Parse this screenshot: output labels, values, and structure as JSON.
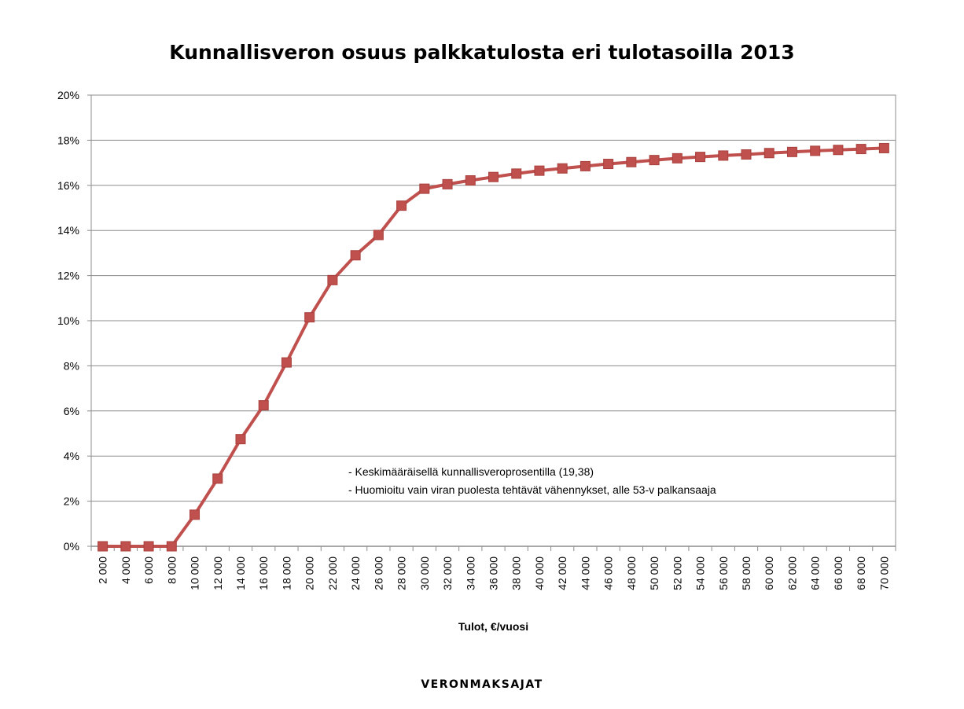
{
  "chart_data": {
    "type": "line",
    "title": "Kunnallisveron osuus palkkatulosta eri tulotasoilla 2013",
    "xlabel": "Tulot, €/vuosi",
    "ylabel": "",
    "categories": [
      "2 000",
      "4 000",
      "6 000",
      "8 000",
      "10 000",
      "12 000",
      "14 000",
      "16 000",
      "18 000",
      "20 000",
      "22 000",
      "24 000",
      "26 000",
      "28 000",
      "30 000",
      "32 000",
      "34 000",
      "36 000",
      "38 000",
      "40 000",
      "42 000",
      "44 000",
      "46 000",
      "48 000",
      "50 000",
      "52 000",
      "54 000",
      "56 000",
      "58 000",
      "60 000",
      "62 000",
      "64 000",
      "66 000",
      "68 000",
      "70 000"
    ],
    "series": [
      {
        "values": [
          0,
          0,
          0,
          0,
          1.4,
          3.0,
          4.75,
          6.25,
          8.15,
          10.15,
          11.8,
          12.9,
          13.8,
          15.1,
          15.85,
          16.05,
          16.22,
          16.37,
          16.52,
          16.65,
          16.75,
          16.85,
          16.95,
          17.03,
          17.12,
          17.2,
          17.26,
          17.32,
          17.37,
          17.43,
          17.48,
          17.53,
          17.57,
          17.61,
          17.65
        ],
        "color": "#c0504d"
      }
    ],
    "ylim": [
      0,
      20
    ],
    "yticks": [
      "0%",
      "2%",
      "4%",
      "6%",
      "8%",
      "10%",
      "12%",
      "14%",
      "16%",
      "18%",
      "20%"
    ],
    "grid": true,
    "annotations": [
      "- Keskimääräisellä kunnallisveroprosentilla (19,38)",
      "- Huomioitu vain viran puolesta tehtävät vähennykset, alle 53-v palkansaaja"
    ]
  },
  "footer": {
    "brand": "VERONMAKSAJAT"
  }
}
